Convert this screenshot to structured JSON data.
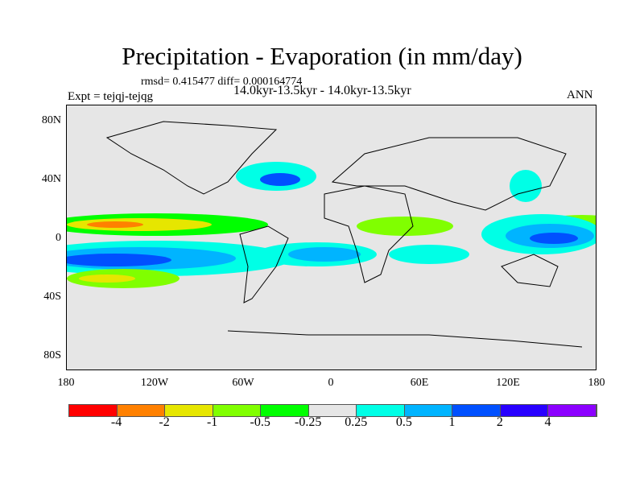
{
  "title": "Precipitation - Evaporation (in mm/day)",
  "stats": "rmsd= 0.415477 diff= 0.000164774",
  "expt": "Expt = tejqj-tejqg",
  "period": "14.0kyr-13.5kyr - 14.0kyr-13.5kyr",
  "season": "ANN",
  "lat_labels": [
    "80N",
    "40N",
    "0",
    "40S",
    "80S"
  ],
  "lon_labels": [
    "180",
    "120W",
    "60W",
    "0",
    "60E",
    "120E",
    "180"
  ],
  "colorbar": {
    "colors": [
      "#ff0000",
      "#ff8000",
      "#e6e600",
      "#80ff00",
      "#00ff00",
      "#e6e6e6",
      "#00ffe6",
      "#00b4ff",
      "#0050ff",
      "#2800ff",
      "#8c00ff"
    ],
    "labels": [
      "-4",
      "-2",
      "-1",
      "-0.5",
      "-0.25",
      "0.25",
      "0.5",
      "1",
      "2",
      "4"
    ]
  }
}
